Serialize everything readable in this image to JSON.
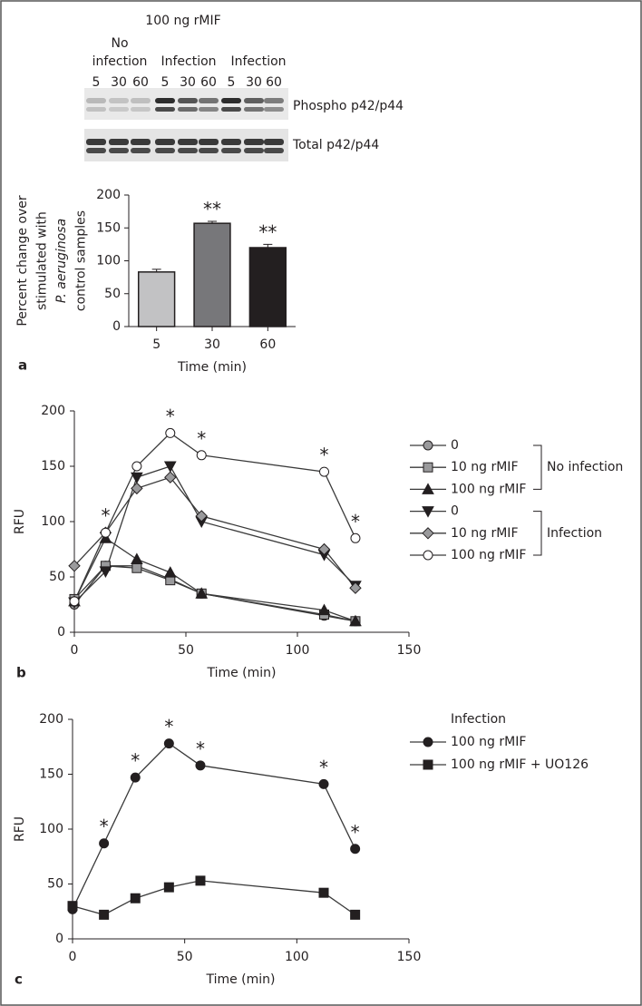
{
  "blot": {
    "treatment": "100 ng rMIF",
    "groups": [
      "No infection",
      "Infection",
      "Infection"
    ],
    "lanes": [
      "5",
      "30",
      "60",
      "5",
      "30",
      "60",
      "5",
      "30",
      "60"
    ],
    "rows": [
      "Phospho p42/p44",
      "Total p42/p44"
    ]
  },
  "chart_data": [
    {
      "type": "bar",
      "panel": "a",
      "ylabel": [
        "Percent change over",
        "stimulated with",
        "P. aeruginosa",
        "control samples"
      ],
      "xlabel": "Time (min)",
      "categories": [
        "5",
        "30",
        "60"
      ],
      "values": [
        83,
        157,
        120
      ],
      "errors": [
        4,
        3,
        5
      ],
      "colors": [
        "#c2c2c4",
        "#77777a",
        "#231f20"
      ],
      "significance": [
        null,
        "**",
        "**"
      ],
      "ylim": [
        0,
        200
      ],
      "yticks": [
        0,
        50,
        100,
        150,
        200
      ]
    },
    {
      "type": "line",
      "panel": "b",
      "ylabel": "RFU",
      "xlabel": "Time (min)",
      "x": [
        0,
        14,
        28,
        43,
        57,
        112,
        126
      ],
      "xlim": [
        0,
        150
      ],
      "xticks": [
        0,
        50,
        100,
        150
      ],
      "ylim": [
        0,
        200
      ],
      "yticks": [
        0,
        50,
        100,
        150,
        200
      ],
      "legend_groups": [
        "No infection",
        "Infection"
      ],
      "series": [
        {
          "name": "0",
          "marker": "circle",
          "color": "#9a9a9c",
          "values": [
            25,
            60,
            60,
            48,
            35,
            15,
            10
          ]
        },
        {
          "name": "10 ng rMIF",
          "marker": "square",
          "color": "#9a9a9c",
          "values": [
            30,
            60,
            58,
            47,
            35,
            16,
            10
          ]
        },
        {
          "name": "100 ng rMIF",
          "marker": "triangle-up",
          "color": "#231f20",
          "values": [
            28,
            85,
            66,
            54,
            35,
            20,
            10
          ]
        },
        {
          "name": "0",
          "marker": "triangle-down",
          "color": "#231f20",
          "values": [
            27,
            55,
            140,
            150,
            100,
            70,
            42
          ]
        },
        {
          "name": "10 ng rMIF",
          "marker": "diamond",
          "color": "#9a9a9c",
          "values": [
            60,
            90,
            130,
            140,
            105,
            75,
            40
          ]
        },
        {
          "name": "100 ng rMIF",
          "marker": "circle",
          "color": "#ffffff",
          "values": [
            28,
            90,
            150,
            180,
            160,
            145,
            85
          ],
          "significance": [
            null,
            "*",
            null,
            "*",
            "*",
            "*",
            "*"
          ]
        }
      ]
    },
    {
      "type": "line",
      "panel": "c",
      "ylabel": "RFU",
      "xlabel": "Time (min)",
      "x": [
        0,
        14,
        28,
        43,
        57,
        112,
        126
      ],
      "xlim": [
        0,
        150
      ],
      "xticks": [
        0,
        50,
        100,
        150
      ],
      "ylim": [
        0,
        200
      ],
      "yticks": [
        0,
        50,
        100,
        150,
        200
      ],
      "legend_title": "Infection",
      "series": [
        {
          "name": "100 ng rMIF",
          "marker": "circle",
          "color": "#231f20",
          "values": [
            27,
            87,
            147,
            178,
            158,
            141,
            82
          ],
          "significance": [
            null,
            "*",
            "*",
            "*",
            "*",
            "*",
            "*"
          ]
        },
        {
          "name": "100 ng rMIF + UO126",
          "marker": "square",
          "color": "#231f20",
          "values": [
            30,
            22,
            37,
            47,
            53,
            42,
            22
          ]
        }
      ]
    }
  ]
}
